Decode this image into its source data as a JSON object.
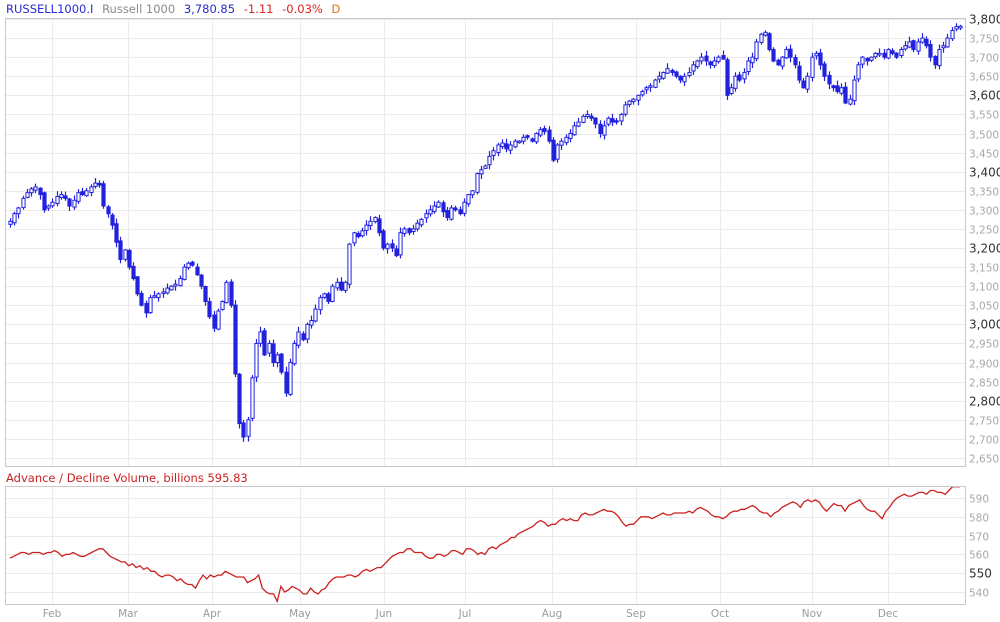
{
  "header": {
    "symbol": "RUSSELL1000.I",
    "name": "Russell 1000",
    "last": "3,780.85",
    "change": "-1.11",
    "change_pct": "-0.03%",
    "period": "D"
  },
  "indicator": {
    "title": "Advance / Decline Volume, billions 595.83"
  },
  "colors": {
    "candle": "#2222dd",
    "ad_line": "#cc2020",
    "grid": "#ebebeb",
    "frame": "#c8c8c8"
  },
  "chart_data": [
    {
      "type": "candlestick",
      "title": "RUSSELL1000.I Russell 1000 3,780.85 -1.11 -0.03% D",
      "xlabel": "",
      "ylabel": "",
      "ylim": [
        2630,
        3800
      ],
      "y_ticks": [
        "3,800",
        "3,750",
        "3,700",
        "3,650",
        "3,600",
        "3,550",
        "3,500",
        "3,450",
        "3,400",
        "3,350",
        "3,300",
        "3,250",
        "3,200",
        "3,150",
        "3,100",
        "3,050",
        "3,000",
        "2,950",
        "2,900",
        "2,850",
        "2,800",
        "2,750",
        "2,700",
        "2,650"
      ],
      "y_major_ticks": [
        "3,800",
        "3,600",
        "3,400",
        "3,200",
        "3,000",
        "2,800"
      ],
      "x_ticks": [
        "Feb",
        "Mar",
        "Apr",
        "May",
        "Jun",
        "Jul",
        "Aug",
        "Sep",
        "Oct",
        "Nov",
        "Dec"
      ],
      "grid": true,
      "closes": [
        3270,
        3290,
        3305,
        3330,
        3345,
        3355,
        3360,
        3340,
        3300,
        3310,
        3320,
        3335,
        3340,
        3330,
        3310,
        3325,
        3345,
        3340,
        3350,
        3360,
        3370,
        3365,
        3310,
        3290,
        3260,
        3215,
        3170,
        3195,
        3150,
        3120,
        3080,
        3050,
        3030,
        3070,
        3075,
        3080,
        3085,
        3095,
        3100,
        3105,
        3120,
        3150,
        3160,
        3155,
        3130,
        3100,
        3060,
        3020,
        2990,
        3035,
        3060,
        3110,
        3050,
        2870,
        2740,
        2705,
        2750,
        2860,
        2950,
        2980,
        2920,
        2950,
        2900,
        2920,
        2875,
        2820,
        2900,
        2950,
        2980,
        2960,
        3000,
        3010,
        3040,
        3070,
        3080,
        3060,
        3100,
        3110,
        3090,
        3110,
        3210,
        3240,
        3230,
        3245,
        3260,
        3270,
        3280,
        3240,
        3200,
        3210,
        3200,
        3180,
        3240,
        3250,
        3240,
        3250,
        3265,
        3275,
        3290,
        3300,
        3310,
        3320,
        3295,
        3280,
        3305,
        3300,
        3290,
        3320,
        3340,
        3350,
        3395,
        3405,
        3415,
        3440,
        3455,
        3470,
        3475,
        3460,
        3470,
        3480,
        3480,
        3490,
        3490,
        3480,
        3500,
        3510,
        3505,
        3480,
        3430,
        3470,
        3480,
        3490,
        3500,
        3520,
        3530,
        3545,
        3550,
        3540,
        3525,
        3500,
        3520,
        3540,
        3530,
        3530,
        3550,
        3575,
        3585,
        3590,
        3600,
        3610,
        3620,
        3625,
        3640,
        3650,
        3660,
        3670,
        3660,
        3650,
        3640,
        3650,
        3660,
        3680,
        3690,
        3700,
        3690,
        3680,
        3690,
        3700,
        3695,
        3600,
        3620,
        3650,
        3640,
        3660,
        3690,
        3700,
        3740,
        3760,
        3765,
        3720,
        3690,
        3680,
        3700,
        3720,
        3700,
        3680,
        3640,
        3620,
        3650,
        3700,
        3710,
        3680,
        3650,
        3630,
        3620,
        3610,
        3620,
        3580,
        3590,
        3640,
        3680,
        3700,
        3690,
        3700,
        3710,
        3710,
        3700,
        3720,
        3710,
        3700,
        3720,
        3730,
        3740,
        3720,
        3740,
        3750,
        3730,
        3700,
        3680,
        3720,
        3730,
        3750,
        3770,
        3780,
        3781
      ],
      "series_note": "Daily OHLC candlesticks, hollow = up day, filled = down day; closes approximated from pixel positions"
    },
    {
      "type": "line",
      "title": "Advance / Decline Volume, billions 595.83",
      "ylim": [
        535,
        597
      ],
      "y_ticks": [
        "590",
        "580",
        "570",
        "560",
        "550",
        "540"
      ],
      "y_major_ticks": [
        "550"
      ],
      "x_ticks": [
        "Feb",
        "Mar",
        "Apr",
        "May",
        "Jun",
        "Jul",
        "Aug",
        "Sep",
        "Oct",
        "Nov",
        "Dec"
      ],
      "grid": true,
      "values": [
        558,
        559,
        560,
        561,
        561,
        560,
        561,
        561,
        561,
        560,
        561,
        561,
        562,
        561,
        559,
        560,
        560,
        561,
        560,
        559,
        559,
        560,
        561,
        562,
        563,
        563,
        561,
        559,
        558,
        557,
        556,
        556,
        554,
        555,
        553,
        554,
        552,
        553,
        551,
        551,
        549,
        548,
        549,
        549,
        548,
        546,
        547,
        545,
        544,
        544,
        542,
        546,
        549,
        547,
        549,
        548,
        549,
        549,
        551,
        550,
        549,
        548,
        548,
        548,
        545,
        546,
        547,
        549,
        542,
        540,
        539,
        539,
        535,
        543,
        540,
        541,
        543,
        542,
        541,
        539,
        539,
        542,
        540,
        539,
        541,
        542,
        545,
        547,
        548,
        548,
        548,
        549,
        549,
        548,
        549,
        551,
        552,
        551,
        552,
        553,
        553,
        555,
        557,
        559,
        560,
        561,
        561,
        563,
        563,
        561,
        561,
        561,
        559,
        558,
        558,
        560,
        560,
        559,
        560,
        562,
        562,
        561,
        560,
        563,
        563,
        562,
        560,
        561,
        560,
        563,
        564,
        563,
        565,
        566,
        567,
        569,
        569,
        571,
        572,
        573,
        574,
        575,
        577,
        578,
        577,
        575,
        576,
        576,
        578,
        579,
        578,
        579,
        578,
        578,
        581,
        582,
        581,
        581,
        582,
        583,
        584,
        583,
        583,
        582,
        580,
        577,
        575,
        576,
        576,
        578,
        580,
        580,
        580,
        579,
        580,
        581,
        582,
        581,
        581,
        582,
        582,
        582,
        582,
        583,
        582,
        584,
        585,
        584,
        583,
        581,
        580,
        580,
        579,
        580,
        582,
        583,
        583,
        584,
        584,
        585,
        586,
        585,
        583,
        582,
        582,
        580,
        582,
        583,
        585,
        586,
        587,
        588,
        587,
        585,
        588,
        589,
        588,
        589,
        588,
        585,
        583,
        585,
        587,
        586,
        586,
        583,
        586,
        587,
        588,
        589,
        586,
        584,
        583,
        583,
        581,
        579,
        583,
        585,
        588,
        590,
        591,
        592,
        591,
        591,
        592,
        593,
        593,
        592,
        594,
        594,
        593,
        593,
        592,
        594,
        596,
        596,
        596
      ]
    }
  ]
}
